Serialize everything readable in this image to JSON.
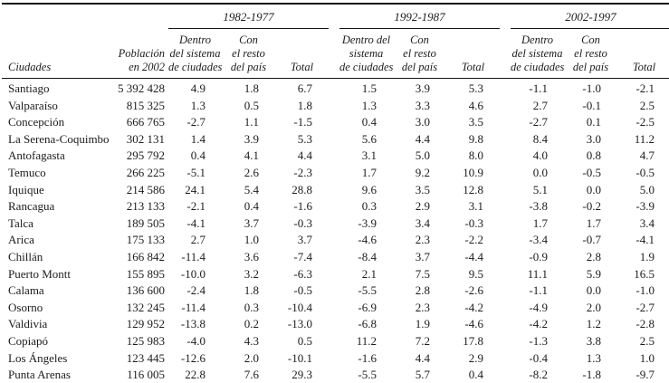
{
  "table": {
    "city_header": "Ciudades",
    "population_header": [
      "Población",
      "en 2002"
    ],
    "periods": [
      {
        "label": "1982-1977",
        "cols": [
          [
            "Dentro",
            "del sistema",
            "de ciudades"
          ],
          [
            "Con",
            "el resto",
            "del país"
          ],
          [
            "Total"
          ]
        ]
      },
      {
        "label": "1992-1987",
        "cols": [
          [
            "Dentro del",
            "sistema",
            "de ciudades"
          ],
          [
            "Con",
            "el resto",
            "del país"
          ],
          [
            "Total"
          ]
        ]
      },
      {
        "label": "2002-1997",
        "cols": [
          [
            "Dentro",
            "del sistema",
            "de ciudades"
          ],
          [
            "Con",
            "el resto",
            "del país"
          ],
          [
            "Total"
          ]
        ]
      }
    ],
    "rows": [
      {
        "city": "Santiago",
        "population": "5 392 428",
        "values": [
          "4.9",
          "1.8",
          "6.7",
          "1.5",
          "3.9",
          "5.3",
          "-1.1",
          "-1.0",
          "-2.1"
        ]
      },
      {
        "city": "Valparaíso",
        "population": "815 325",
        "values": [
          "1.3",
          "0.5",
          "1.8",
          "1.3",
          "3.3",
          "4.6",
          "2.7",
          "-0.1",
          "2.5"
        ]
      },
      {
        "city": "Concepción",
        "population": "666 765",
        "values": [
          "-2.7",
          "1.1",
          "-1.5",
          "0.4",
          "3.0",
          "3.5",
          "-2.7",
          "0.1",
          "-2.5"
        ]
      },
      {
        "city": "La Serena-Coquimbo",
        "population": "302 131",
        "values": [
          "1.4",
          "3.9",
          "5.3",
          "5.6",
          "4.4",
          "9.8",
          "8.4",
          "3.0",
          "11.2"
        ]
      },
      {
        "city": "Antofagasta",
        "population": "295 792",
        "values": [
          "0.4",
          "4.1",
          "4.4",
          "3.1",
          "5.0",
          "8.0",
          "4.0",
          "0.8",
          "4.7"
        ]
      },
      {
        "city": "Temuco",
        "population": "266 225",
        "values": [
          "-5.1",
          "2.6",
          "-2.3",
          "1.7",
          "9.2",
          "10.9",
          "0.0",
          "-0.5",
          "-0.5"
        ]
      },
      {
        "city": "Iquique",
        "population": "214 586",
        "values": [
          "24.1",
          "5.4",
          "28.8",
          "9.6",
          "3.5",
          "12.8",
          "5.1",
          "0.0",
          "5.0"
        ]
      },
      {
        "city": "Rancagua",
        "population": "213 133",
        "values": [
          "-2.1",
          "0.4",
          "-1.6",
          "0.3",
          "2.9",
          "3.1",
          "-3.8",
          "-0.2",
          "-3.9"
        ]
      },
      {
        "city": "Talca",
        "population": "189 505",
        "values": [
          "-4.1",
          "3.7",
          "-0.3",
          "-3.9",
          "3.4",
          "-0.3",
          "1.7",
          "1.7",
          "3.4"
        ]
      },
      {
        "city": "Arica",
        "population": "175 133",
        "values": [
          "2.7",
          "1.0",
          "3.7",
          "-4.6",
          "2.3",
          "-2.2",
          "-3.4",
          "-0.7",
          "-4.1"
        ]
      },
      {
        "city": "Chillán",
        "population": "166 842",
        "values": [
          "-11.4",
          "3.6",
          "-7.4",
          "-8.4",
          "3.7",
          "-4.4",
          "-0.9",
          "2.8",
          "1.9"
        ]
      },
      {
        "city": "Puerto Montt",
        "population": "155 895",
        "values": [
          "-10.0",
          "3.2",
          "-6.3",
          "2.1",
          "7.5",
          "9.5",
          "11.1",
          "5.9",
          "16.5"
        ]
      },
      {
        "city": "Calama",
        "population": "136 600",
        "values": [
          "-2.4",
          "1.8",
          "-0.5",
          "-5.5",
          "2.8",
          "-2.6",
          "-1.1",
          "0.0",
          "-1.0"
        ]
      },
      {
        "city": "Osorno",
        "population": "132 245",
        "values": [
          "-11.4",
          "0.3",
          "-10.4",
          "-6.9",
          "2.3",
          "-4.2",
          "-4.9",
          "2.0",
          "-2.7"
        ]
      },
      {
        "city": "Valdivia",
        "population": "129 952",
        "values": [
          "-13.8",
          "0.2",
          "-13.0",
          "-6.8",
          "1.9",
          "-4.6",
          "-4.2",
          "1.2",
          "-2.8"
        ]
      },
      {
        "city": "Copiapó",
        "population": "125 983",
        "values": [
          "-4.0",
          "4.3",
          "0.5",
          "11.2",
          "7.2",
          "17.8",
          "-1.3",
          "3.8",
          "2.5"
        ]
      },
      {
        "city": "Los Ángeles",
        "population": "123 445",
        "values": [
          "-12.6",
          "2.0",
          "-10.1",
          "-1.6",
          "4.4",
          "2.9",
          "-0.4",
          "1.3",
          "1.0"
        ]
      },
      {
        "city": "Punta Arenas",
        "population": "116 005",
        "values": [
          "22.8",
          "7.6",
          "29.3",
          "-5.5",
          "5.7",
          "0.4",
          "-8.2",
          "-1.8",
          "-9.7"
        ]
      }
    ]
  }
}
